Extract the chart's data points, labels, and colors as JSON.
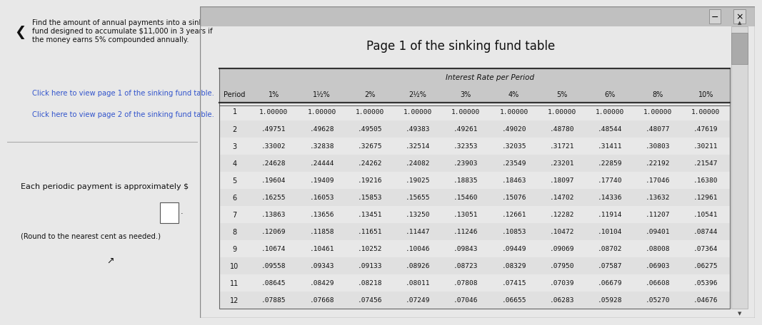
{
  "main_question": "Find the amount of annual payments into a sinking fund designed to accumulate $11,000 in 3 years if the money earns 5% compounded annually.",
  "link1": "Click here to view page 1 of the sinking fund table.",
  "link2": "Click here to view page 2 of the sinking fund table.",
  "answer_label": "Each periodic payment is approximately $",
  "answer_note": "(Round to the nearest cent as needed.)",
  "popup_title": "Page 1 of the sinking fund table",
  "table_header_top": "Interest Rate per Period",
  "table_cols": [
    "Period",
    "1%",
    "1½%",
    "2%",
    "2½%",
    "3%",
    "4%",
    "5%",
    "6%",
    "8%",
    "10%"
  ],
  "table_data": [
    [
      1,
      "1.00000",
      "1.00000",
      "1.00000",
      "1.00000",
      "1.00000",
      "1.00000",
      "1.00000",
      "1.00000",
      "1.00000",
      "1.00000"
    ],
    [
      2,
      ".49751",
      ".49628",
      ".49505",
      ".49383",
      ".49261",
      ".49020",
      ".48780",
      ".48544",
      ".48077",
      ".47619"
    ],
    [
      3,
      ".33002",
      ".32838",
      ".32675",
      ".32514",
      ".32353",
      ".32035",
      ".31721",
      ".31411",
      ".30803",
      ".30211"
    ],
    [
      4,
      ".24628",
      ".24444",
      ".24262",
      ".24082",
      ".23903",
      ".23549",
      ".23201",
      ".22859",
      ".22192",
      ".21547"
    ],
    [
      5,
      ".19604",
      ".19409",
      ".19216",
      ".19025",
      ".18835",
      ".18463",
      ".18097",
      ".17740",
      ".17046",
      ".16380"
    ],
    [
      6,
      ".16255",
      ".16053",
      ".15853",
      ".15655",
      ".15460",
      ".15076",
      ".14702",
      ".14336",
      ".13632",
      ".12961"
    ],
    [
      7,
      ".13863",
      ".13656",
      ".13451",
      ".13250",
      ".13051",
      ".12661",
      ".12282",
      ".11914",
      ".11207",
      ".10541"
    ],
    [
      8,
      ".12069",
      ".11858",
      ".11651",
      ".11447",
      ".11246",
      ".10853",
      ".10472",
      ".10104",
      ".09401",
      ".08744"
    ],
    [
      9,
      ".10674",
      ".10461",
      ".10252",
      ".10046",
      ".09843",
      ".09449",
      ".09069",
      ".08702",
      ".08008",
      ".07364"
    ],
    [
      10,
      ".09558",
      ".09343",
      ".09133",
      ".08926",
      ".08723",
      ".08329",
      ".07950",
      ".07587",
      ".06903",
      ".06275"
    ],
    [
      11,
      ".08645",
      ".08429",
      ".08218",
      ".08011",
      ".07808",
      ".07415",
      ".07039",
      ".06679",
      ".06608",
      ".05396"
    ],
    [
      12,
      ".07885",
      ".07668",
      ".07456",
      ".07249",
      ".07046",
      ".06655",
      ".06283",
      ".05928",
      ".05270",
      ".04676"
    ]
  ],
  "bg_color": "#e8e8e8",
  "popup_bg": "#ffffff",
  "left_panel_bg": "#e0e0e0",
  "link_color": "#3355cc",
  "text_color": "#111111"
}
